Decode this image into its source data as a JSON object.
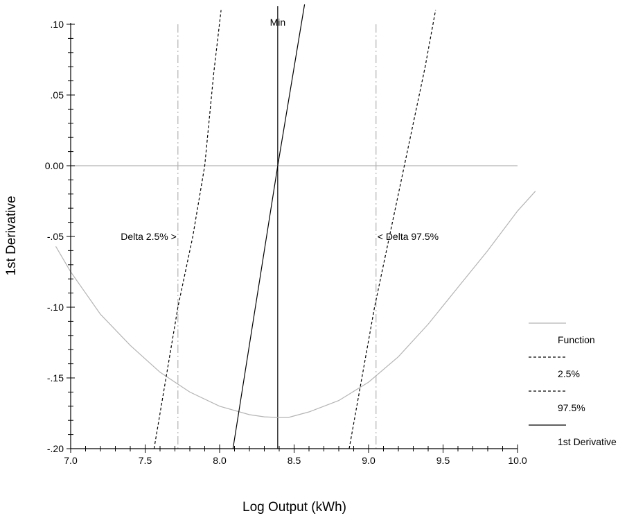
{
  "chart_data": {
    "type": "line",
    "xlabel": "Log Output (kWh)",
    "ylabel": "1st Derivative",
    "xlim": [
      7.0,
      10.0
    ],
    "ylim": [
      -0.2,
      0.1
    ],
    "x_ticks": [
      {
        "value": 7.0,
        "label": "7.0"
      },
      {
        "value": 7.5,
        "label": "7.5"
      },
      {
        "value": 8.0,
        "label": "8.0"
      },
      {
        "value": 8.5,
        "label": "8.5"
      },
      {
        "value": 9.0,
        "label": "9.0"
      },
      {
        "value": 9.5,
        "label": "9.5"
      },
      {
        "value": 10.0,
        "label": "10.0"
      }
    ],
    "y_ticks": [
      {
        "value": 0.1,
        "label": ".10"
      },
      {
        "value": 0.05,
        "label": ".05"
      },
      {
        "value": 0.0,
        "label": "0.00"
      },
      {
        "value": -0.05,
        "label": "-.05"
      },
      {
        "value": -0.1,
        "label": "-.10"
      },
      {
        "value": -0.15,
        "label": "-.15"
      },
      {
        "value": -0.2,
        "label": "-.20"
      }
    ],
    "minor_x_step": 0.1,
    "minor_y_step": 0.01,
    "grid": false,
    "legend_position": "right",
    "series": [
      {
        "name": "Function",
        "style": "solid",
        "color": "#b4b4b4",
        "x": [
          6.9,
          7.0,
          7.2,
          7.4,
          7.6,
          7.8,
          8.0,
          8.2,
          8.3,
          8.4,
          8.46,
          8.6,
          8.8,
          9.0,
          9.2,
          9.4,
          9.6,
          9.8,
          10.0,
          10.12
        ],
        "y": [
          -0.057,
          -0.075,
          -0.105,
          -0.127,
          -0.146,
          -0.16,
          -0.17,
          -0.176,
          -0.1775,
          -0.178,
          -0.178,
          -0.174,
          -0.166,
          -0.153,
          -0.135,
          -0.112,
          -0.086,
          -0.06,
          -0.032,
          -0.018
        ]
      },
      {
        "name": "2.5%",
        "style": "dashed",
        "color": "#000000",
        "x": [
          7.56,
          7.72,
          7.82,
          7.9,
          7.96,
          8.01
        ],
        "y": [
          -0.2,
          -0.1,
          -0.05,
          0.0,
          0.065,
          0.11
        ]
      },
      {
        "name": "97.5%",
        "style": "dashed",
        "color": "#000000",
        "x": [
          8.87,
          9.04,
          9.18,
          9.28,
          9.38,
          9.45
        ],
        "y": [
          -0.2,
          -0.1,
          -0.03,
          0.02,
          0.07,
          0.11
        ]
      },
      {
        "name": "1st Derivative",
        "style": "solid",
        "color": "#000000",
        "x": [
          8.09,
          8.39,
          8.57
        ],
        "y": [
          -0.2,
          0.0,
          0.114
        ]
      }
    ],
    "reference_lines": [
      {
        "axis": "x",
        "value": 7.72,
        "style": "dashdot",
        "color": "#b4b4b4"
      },
      {
        "axis": "x",
        "value": 9.05,
        "style": "dashdot",
        "color": "#b4b4b4"
      },
      {
        "axis": "x",
        "value": 8.39,
        "style": "solid",
        "color": "#000000"
      },
      {
        "axis": "y",
        "value": 0.0,
        "style": "solid",
        "color": "#b4b4b4"
      }
    ],
    "annotations": [
      {
        "text": "Min",
        "x": 8.39,
        "y": 0.1
      },
      {
        "text": "Delta 2.5% >",
        "x": 7.72,
        "y": -0.05
      },
      {
        "text": "< Delta 97.5%",
        "x": 9.05,
        "y": -0.05
      }
    ]
  }
}
